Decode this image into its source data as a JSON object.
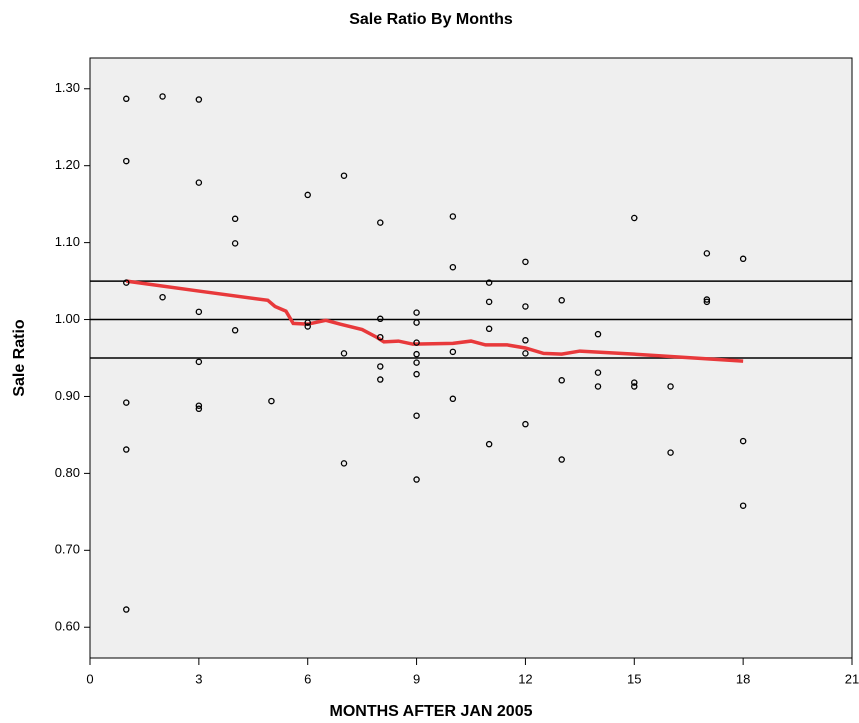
{
  "chart_data": {
    "type": "scatter",
    "title": "Sale Ratio By Months",
    "x_label": "MONTHS AFTER JAN 2005",
    "y_label": "Sale Ratio",
    "xlim": [
      0,
      21
    ],
    "xticks": [
      0,
      3,
      6,
      9,
      12,
      15,
      18,
      21
    ],
    "ylim": [
      0.56,
      1.34
    ],
    "yticks": [
      {
        "value": 0.6,
        "label": "0.60"
      },
      {
        "value": 0.7,
        "label": "0.70"
      },
      {
        "value": 0.8,
        "label": "0.80"
      },
      {
        "value": 0.9,
        "label": "0.90"
      },
      {
        "value": 1.0,
        "label": "1.00"
      },
      {
        "value": 1.1,
        "label": "1.10"
      },
      {
        "value": 1.2,
        "label": "1.20"
      },
      {
        "value": 1.3,
        "label": "1.30"
      }
    ],
    "reference_lines": [
      0.95,
      1.0,
      1.05
    ],
    "background": "#efefef",
    "points": {
      "color": "#000000",
      "x": [
        1,
        1,
        1,
        1,
        1,
        1,
        2,
        2,
        3,
        3,
        3,
        3,
        3,
        3,
        4,
        4,
        4,
        5,
        6,
        6,
        6,
        7,
        7,
        7,
        8,
        8,
        8,
        8,
        8,
        9,
        9,
        9,
        9,
        9,
        9,
        9,
        9,
        10,
        10,
        10,
        10,
        11,
        11,
        11,
        11,
        12,
        12,
        12,
        12,
        12,
        13,
        13,
        13,
        14,
        14,
        14,
        15,
        15,
        15,
        16,
        16,
        17,
        17,
        17,
        18,
        18,
        18
      ],
      "y": [
        1.287,
        1.206,
        1.048,
        0.892,
        0.831,
        0.623,
        1.29,
        1.029,
        1.286,
        1.178,
        1.01,
        0.945,
        0.888,
        0.884,
        1.131,
        1.099,
        0.986,
        0.894,
        1.162,
        0.996,
        0.991,
        1.187,
        0.956,
        0.813,
        1.126,
        1.001,
        0.977,
        0.939,
        0.922,
        1.009,
        0.996,
        0.97,
        0.955,
        0.944,
        0.929,
        0.875,
        0.792,
        1.134,
        1.068,
        0.958,
        0.897,
        1.048,
        1.023,
        0.988,
        0.838,
        1.075,
        1.017,
        0.973,
        0.956,
        0.864,
        1.025,
        0.921,
        0.818,
        0.981,
        0.931,
        0.913,
        1.132,
        0.918,
        0.913,
        0.913,
        0.827,
        1.086,
        1.026,
        1.023,
        1.079,
        0.842,
        0.758
      ]
    },
    "fit_line": {
      "color": "#e8393b",
      "x": [
        1,
        3,
        4.9,
        5.1,
        5.4,
        5.6,
        6,
        6.5,
        6.9,
        7.5,
        7.9,
        8.1,
        8.5,
        8.9,
        10,
        10.5,
        10.9,
        11.5,
        12,
        12.5,
        13,
        13.5,
        15,
        16,
        18
      ],
      "y": [
        1.05,
        1.037,
        1.025,
        1.017,
        1.011,
        0.995,
        0.994,
        0.999,
        0.994,
        0.987,
        0.977,
        0.971,
        0.972,
        0.968,
        0.969,
        0.972,
        0.967,
        0.967,
        0.963,
        0.956,
        0.955,
        0.959,
        0.955,
        0.952,
        0.946
      ]
    }
  }
}
